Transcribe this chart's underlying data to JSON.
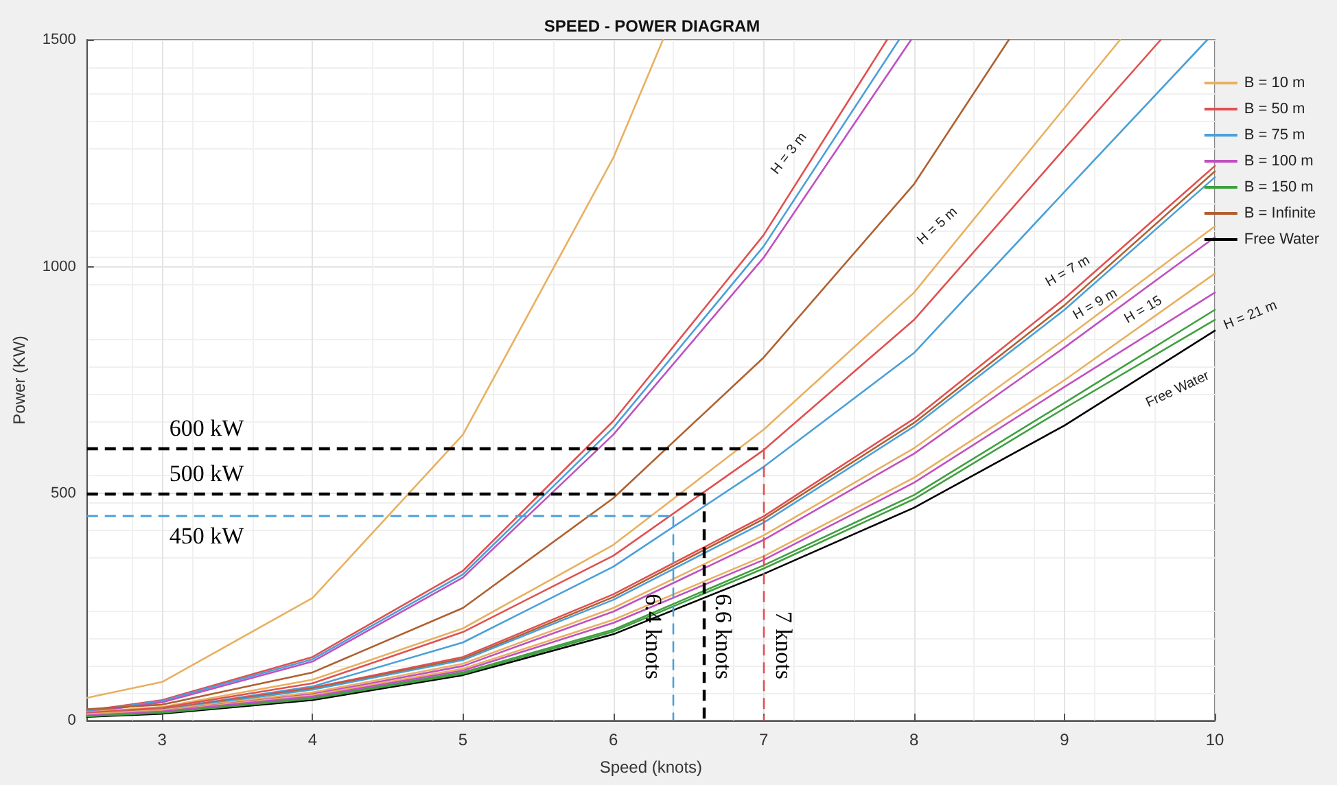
{
  "chart_data": {
    "type": "line",
    "title": "SPEED - POWER DIAGRAM",
    "xlabel": "Speed (knots)",
    "ylabel": "Power (KW)",
    "x": [
      2.5,
      3,
      4,
      5,
      6,
      7,
      8,
      9,
      10
    ],
    "xlim": [
      2.5,
      10
    ],
    "xticks": [
      3,
      4,
      5,
      6,
      7,
      8,
      9,
      10
    ],
    "ylim": [
      0,
      1500
    ],
    "yticks": [
      0,
      500,
      1000,
      1500
    ],
    "grid": true,
    "legend": "right",
    "marker": "none",
    "line_style": "solid",
    "series": [
      {
        "name": "B = 10 m",
        "color": "#e8b060",
        "x": [
          2.5,
          3,
          4,
          5,
          6,
          6.33
        ],
        "values": [
          50,
          85,
          270,
          630,
          1240,
          1500
        ]
      },
      {
        "name": "B = 50 m",
        "color": "#e05050",
        "x": [
          2.5,
          3,
          4,
          5,
          6,
          7,
          7.82
        ],
        "values": [
          22,
          45,
          140,
          330,
          660,
          1070,
          1500
        ]
      },
      {
        "name": "B = 75 m",
        "color": "#4aa0d8",
        "x": [
          2.5,
          3,
          4,
          5,
          6,
          7,
          7.9
        ],
        "values": [
          20,
          43,
          135,
          322,
          645,
          1045,
          1500
        ]
      },
      {
        "name": "B = 100 m",
        "color": "#c050c0",
        "x": [
          2.5,
          3,
          4,
          5,
          6,
          7,
          7.98
        ],
        "values": [
          18,
          40,
          130,
          315,
          630,
          1020,
          1500
        ]
      },
      {
        "name": "B = 150 m",
        "color": "#40a040",
        "values": [
          10,
          18,
          50,
          106,
          200,
          342,
          497,
          700,
          905
        ]
      },
      {
        "name": "B = Infinite",
        "color": "#b06030",
        "x": [
          2.5,
          3,
          4,
          5,
          6,
          7,
          8,
          8.63
        ],
        "values": [
          25,
          35,
          106,
          248,
          490,
          800,
          1182,
          1500
        ]
      },
      {
        "name": "Free Water",
        "color": "#000000",
        "values": [
          8,
          15,
          45,
          100,
          190,
          323,
          469,
          650,
          859
        ]
      },
      {
        "color": "#e8b060",
        "x": [
          2.5,
          3,
          4,
          5,
          6,
          7,
          8,
          9,
          9.37
        ],
        "values": [
          18,
          30,
          90,
          203,
          387,
          641,
          943,
          1350,
          1500
        ]
      },
      {
        "color": "#e05050",
        "x": [
          2.5,
          3,
          4,
          5,
          6,
          7,
          8,
          9,
          9.64
        ],
        "values": [
          17,
          28,
          82,
          195,
          363,
          596,
          883,
          1260,
          1500
        ]
      },
      {
        "color": "#4aa0d8",
        "x": [
          2.5,
          3,
          4,
          5,
          6,
          7,
          8,
          9,
          9.95
        ],
        "values": [
          15,
          25,
          75,
          172,
          339,
          559,
          810,
          1165,
          1500
        ]
      },
      {
        "color": "#e05050",
        "values": [
          15,
          25,
          72,
          140,
          278,
          450,
          665,
          930,
          1222
        ]
      },
      {
        "color": "#b06030",
        "values": [
          14,
          24,
          70,
          136,
          272,
          444,
          656,
          915,
          1210
        ]
      },
      {
        "color": "#4aa0d8",
        "values": [
          13,
          23,
          68,
          133,
          266,
          436,
          648,
          905,
          1197
        ]
      },
      {
        "color": "#e8b060",
        "values": [
          14,
          23,
          62,
          125,
          248,
          408,
          600,
          840,
          1089
        ]
      },
      {
        "color": "#c050c0",
        "values": [
          12,
          21,
          58,
          120,
          240,
          398,
          588,
          822,
          1065
        ]
      },
      {
        "color": "#e8b060",
        "values": [
          12,
          21,
          56,
          114,
          222,
          362,
          535,
          750,
          985
        ]
      },
      {
        "color": "#c050c0",
        "values": [
          11,
          20,
          53,
          110,
          215,
          354,
          524,
          735,
          943
        ]
      },
      {
        "color": "#40a040",
        "values": [
          9,
          17,
          48,
          103,
          196,
          335,
          488,
          688,
          883
        ]
      }
    ],
    "ref_lines": [
      {
        "axis": "y",
        "value": 600,
        "label": "600 kW",
        "color": "#000000",
        "line_style": "dashed"
      },
      {
        "axis": "y",
        "value": 500,
        "label": "500 kW",
        "color": "#000000",
        "line_style": "dashed"
      },
      {
        "axis": "y",
        "value": 450,
        "label": "450 kW",
        "color": "#4aa0d8",
        "line_style": "dashed"
      },
      {
        "axis": "x",
        "value": 7,
        "label": "7 knots",
        "color": "#e05050",
        "line_style": "dashed"
      },
      {
        "axis": "x",
        "value": 6.6,
        "label": "6.6 knots",
        "color": "#000000",
        "line_style": "dashed"
      },
      {
        "axis": "x",
        "value": 6.4,
        "label": "6.4 knots",
        "color": "#4aa0d8",
        "line_style": "dashed"
      }
    ],
    "annotations": [
      "H = 3 m",
      "H = 5 m",
      "H = 7 m",
      "H = 9 m",
      "H = 15",
      "H = 21 m",
      "Free Water"
    ]
  }
}
